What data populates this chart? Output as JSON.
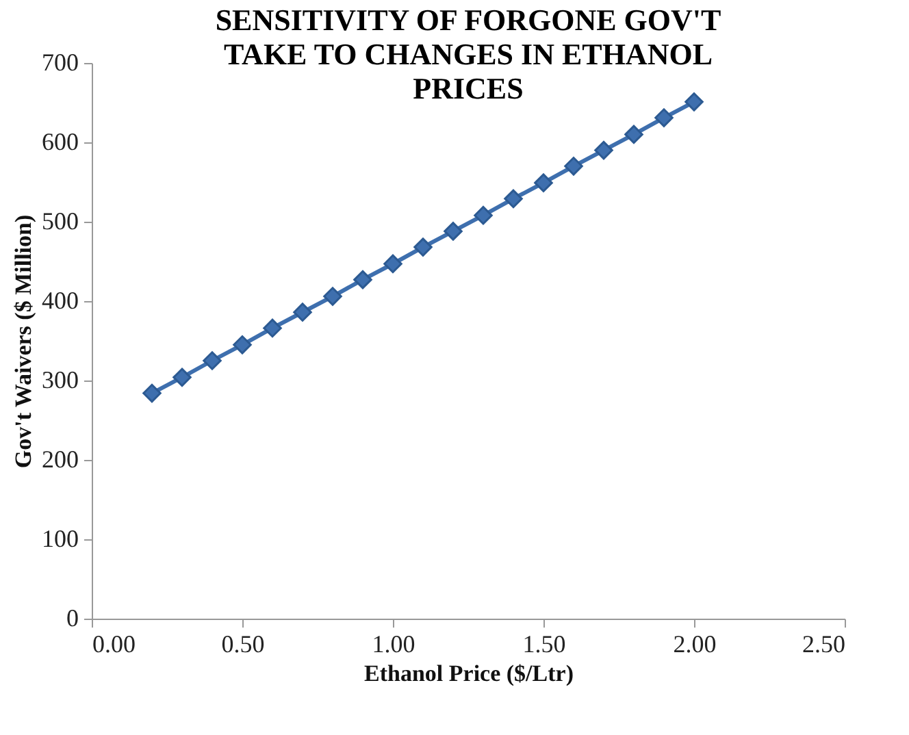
{
  "chart_data": {
    "type": "line",
    "title": [
      "SENSITIVITY OF FORGONE GOV'T",
      "TAKE TO CHANGES IN ETHANOL",
      "PRICES"
    ],
    "xlabel": "Ethanol Price ($/Ltr)",
    "ylabel": "Gov't Waivers ($ Million)",
    "x": [
      0.2,
      0.3,
      0.4,
      0.5,
      0.6,
      0.7,
      0.8,
      0.9,
      1.0,
      1.1,
      1.2,
      1.3,
      1.4,
      1.5,
      1.6,
      1.7,
      1.8,
      1.9,
      2.0
    ],
    "series": [
      {
        "color": "#3e6fae",
        "values": [
          284,
          304,
          325,
          345,
          366,
          386,
          406,
          427,
          447,
          468,
          488,
          508,
          529,
          549,
          570,
          590,
          610,
          631,
          651
        ]
      }
    ],
    "xlim": [
      0,
      2.5
    ],
    "xticks": [
      {
        "value": 0,
        "label": "0.00"
      },
      {
        "value": 0.5,
        "label": "0.50"
      },
      {
        "value": 1,
        "label": "1.00"
      },
      {
        "value": 1.5,
        "label": "1.50"
      },
      {
        "value": 2,
        "label": "2.00"
      },
      {
        "value": 2.5,
        "label": "2.50"
      }
    ],
    "ylim": [
      0,
      700
    ],
    "yticks": [
      0,
      100,
      200,
      300,
      400,
      500,
      600,
      700
    ],
    "grid": false,
    "marker": "diamond",
    "line_style": "solid"
  }
}
